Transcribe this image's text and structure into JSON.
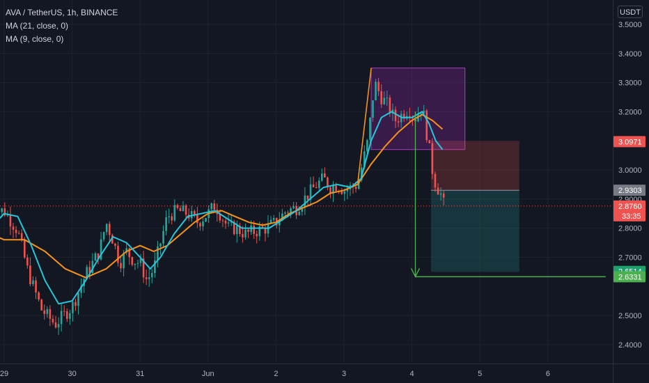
{
  "header": {
    "symbol_line": "AVA / TetherUS, 1h, BINANCE",
    "indicators": [
      "MA (21, close, 0)",
      "MA (9, close, 0)"
    ]
  },
  "currency": "USDT",
  "colors": {
    "background": "#131722",
    "up_candle": "#26a69a",
    "down_candle": "#ef5350",
    "ma21": "#f7931a",
    "ma9": "#26c6da",
    "projection": "#4caf50",
    "range_box": "#9c27b0",
    "axis_text": "#b2b5be"
  },
  "chart_data": {
    "type": "candlestick",
    "x_ticks": [
      "29",
      "30",
      "31",
      "Jun",
      "2",
      "3",
      "4",
      "5",
      "6"
    ],
    "y_ticks": [
      "3.5000",
      "3.4000",
      "3.3000",
      "3.2000",
      "3.0000",
      "2.9000",
      "2.8000",
      "2.7000",
      "2.5000",
      "2.4000"
    ],
    "ylim": [
      2.36,
      3.54
    ],
    "price_labels": [
      {
        "value": 3.0971,
        "text": "3.0971",
        "color": "#ef5350"
      },
      {
        "value": 2.9303,
        "text": "2.9303",
        "color": "#787b86"
      },
      {
        "value": 2.876,
        "text": "2.8760",
        "sub": "33:35",
        "color": "#ef5350"
      },
      {
        "value": 2.6514,
        "text": "2.6514",
        "color": "#1e9f6e"
      },
      {
        "value": 2.6331,
        "text": "2.6331",
        "color": "#4caf50"
      }
    ],
    "last_price": 2.876,
    "approx_close_path": [
      [
        28.8,
        2.86
      ],
      [
        29.0,
        2.86
      ],
      [
        29.2,
        2.79
      ],
      [
        29.35,
        2.65
      ],
      [
        29.55,
        2.52
      ],
      [
        29.75,
        2.47
      ],
      [
        30.0,
        2.53
      ],
      [
        30.2,
        2.64
      ],
      [
        30.4,
        2.72
      ],
      [
        30.5,
        2.82
      ],
      [
        30.6,
        2.76
      ],
      [
        30.7,
        2.68
      ],
      [
        30.8,
        2.72
      ],
      [
        30.9,
        2.69
      ],
      [
        31.0,
        2.68
      ],
      [
        31.1,
        2.62
      ],
      [
        31.2,
        2.66
      ],
      [
        31.3,
        2.75
      ],
      [
        31.4,
        2.84
      ],
      [
        31.55,
        2.86
      ],
      [
        31.7,
        2.85
      ],
      [
        31.85,
        2.82
      ],
      [
        32.0,
        2.85
      ],
      [
        32.1,
        2.88
      ],
      [
        32.2,
        2.84
      ],
      [
        32.3,
        2.8
      ],
      [
        32.4,
        2.8
      ],
      [
        32.55,
        2.78
      ],
      [
        32.7,
        2.79
      ],
      [
        32.85,
        2.8
      ],
      [
        33.0,
        2.82
      ],
      [
        33.15,
        2.86
      ],
      [
        33.3,
        2.87
      ],
      [
        33.45,
        2.91
      ],
      [
        33.6,
        2.95
      ],
      [
        33.7,
        2.97
      ],
      [
        33.8,
        2.94
      ],
      [
        33.9,
        2.95
      ],
      [
        34.0,
        2.93
      ],
      [
        34.1,
        2.94
      ],
      [
        34.2,
        2.95
      ],
      [
        34.35,
        3.1
      ],
      [
        34.45,
        3.3
      ],
      [
        34.55,
        3.25
      ],
      [
        34.65,
        3.22
      ],
      [
        34.75,
        3.17
      ],
      [
        34.85,
        3.19
      ],
      [
        34.95,
        3.21
      ],
      [
        35.05,
        3.18
      ],
      [
        35.15,
        3.22
      ],
      [
        35.25,
        3.08
      ],
      [
        35.3,
        3.0
      ],
      [
        35.35,
        2.95
      ],
      [
        35.42,
        2.92
      ],
      [
        35.47,
        2.88
      ]
    ],
    "ma21_path": [
      [
        28.8,
        2.78
      ],
      [
        29.0,
        2.76
      ],
      [
        29.3,
        2.76
      ],
      [
        29.6,
        2.72
      ],
      [
        29.9,
        2.66
      ],
      [
        30.2,
        2.63
      ],
      [
        30.5,
        2.66
      ],
      [
        30.8,
        2.72
      ],
      [
        31.0,
        2.74
      ],
      [
        31.2,
        2.72
      ],
      [
        31.4,
        2.74
      ],
      [
        31.6,
        2.78
      ],
      [
        31.8,
        2.82
      ],
      [
        32.0,
        2.85
      ],
      [
        32.2,
        2.86
      ],
      [
        32.4,
        2.84
      ],
      [
        32.6,
        2.82
      ],
      [
        32.8,
        2.81
      ],
      [
        33.0,
        2.82
      ],
      [
        33.2,
        2.85
      ],
      [
        33.4,
        2.87
      ],
      [
        33.6,
        2.89
      ],
      [
        33.8,
        2.92
      ],
      [
        34.0,
        2.93
      ],
      [
        34.2,
        2.95
      ],
      [
        34.4,
        3.02
      ],
      [
        34.6,
        3.08
      ],
      [
        34.8,
        3.13
      ],
      [
        35.0,
        3.17
      ],
      [
        35.15,
        3.19
      ],
      [
        35.3,
        3.17
      ],
      [
        35.45,
        3.14
      ]
    ],
    "ma9_path": [
      [
        28.8,
        2.8
      ],
      [
        29.0,
        2.85
      ],
      [
        29.2,
        2.84
      ],
      [
        29.4,
        2.74
      ],
      [
        29.6,
        2.62
      ],
      [
        29.8,
        2.54
      ],
      [
        30.0,
        2.55
      ],
      [
        30.2,
        2.62
      ],
      [
        30.4,
        2.7
      ],
      [
        30.6,
        2.77
      ],
      [
        30.8,
        2.75
      ],
      [
        31.0,
        2.7
      ],
      [
        31.15,
        2.66
      ],
      [
        31.3,
        2.7
      ],
      [
        31.5,
        2.78
      ],
      [
        31.7,
        2.84
      ],
      [
        31.9,
        2.85
      ],
      [
        32.1,
        2.86
      ],
      [
        32.3,
        2.83
      ],
      [
        32.5,
        2.8
      ],
      [
        32.7,
        2.8
      ],
      [
        32.9,
        2.8
      ],
      [
        33.1,
        2.83
      ],
      [
        33.3,
        2.86
      ],
      [
        33.5,
        2.9
      ],
      [
        33.7,
        2.94
      ],
      [
        33.9,
        2.95
      ],
      [
        34.1,
        2.94
      ],
      [
        34.25,
        2.97
      ],
      [
        34.4,
        3.1
      ],
      [
        34.55,
        3.18
      ],
      [
        34.7,
        3.2
      ],
      [
        34.85,
        3.18
      ],
      [
        35.0,
        3.18
      ],
      [
        35.15,
        3.2
      ],
      [
        35.25,
        3.16
      ],
      [
        35.35,
        3.1
      ],
      [
        35.45,
        3.07
      ]
    ],
    "drawings": {
      "range_box": {
        "x0": 34.4,
        "x1": 35.78,
        "y0": 3.07,
        "y1": 3.35
      },
      "impulse_line": [
        [
          34.2,
          2.95
        ],
        [
          34.4,
          3.35
        ]
      ],
      "risk_zone": {
        "x0": 35.28,
        "x1": 36.58,
        "y_top": 3.1,
        "y_entry": 2.93,
        "y_bottom": 2.65
      },
      "projection": {
        "x": 35.05,
        "y_start": 3.2,
        "y_end": 2.6331,
        "x_end": 37.85
      }
    }
  }
}
